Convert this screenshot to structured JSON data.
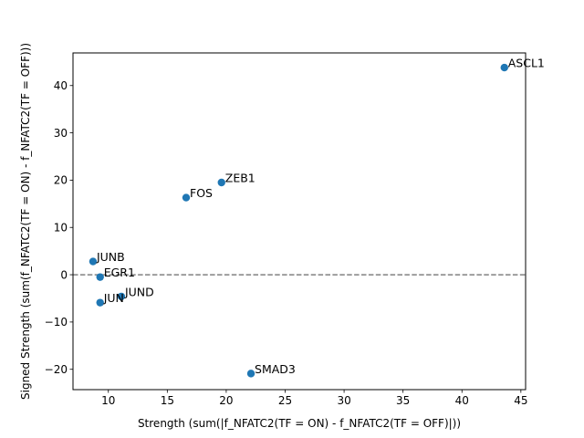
{
  "chart_data": {
    "type": "scatter",
    "title": "",
    "xlabel": "Strength (sum(|f_NFATC2(TF = ON) - f_NFATC2(TF = OFF)|))",
    "ylabel": "Signed Strength (sum(f_NFATC2(TF = ON) - f_NFATC2(TF = OFF)))",
    "xlim": [
      7.0,
      45.4
    ],
    "ylim": [
      -24.3,
      46.9
    ],
    "xticks": [
      10,
      15,
      20,
      25,
      30,
      35,
      40,
      45
    ],
    "yticks": [
      -20,
      -10,
      0,
      10,
      20,
      30,
      40
    ],
    "reference_line": {
      "y": 0,
      "style": "dashed",
      "color": "#808080"
    },
    "marker_color": "#1f77b4",
    "grid": false,
    "points": [
      {
        "label": "ASCL1",
        "x": 43.6,
        "y": 43.8
      },
      {
        "label": "ZEB1",
        "x": 19.6,
        "y": 19.5
      },
      {
        "label": "FOS",
        "x": 16.6,
        "y": 16.3
      },
      {
        "label": "JUNB",
        "x": 8.7,
        "y": 2.8
      },
      {
        "label": "EGR1",
        "x": 9.3,
        "y": -0.5
      },
      {
        "label": "JUND",
        "x": 11.1,
        "y": -4.6
      },
      {
        "label": "JUN",
        "x": 9.3,
        "y": -5.9
      },
      {
        "label": "SMAD3",
        "x": 22.1,
        "y": -20.9
      }
    ]
  }
}
